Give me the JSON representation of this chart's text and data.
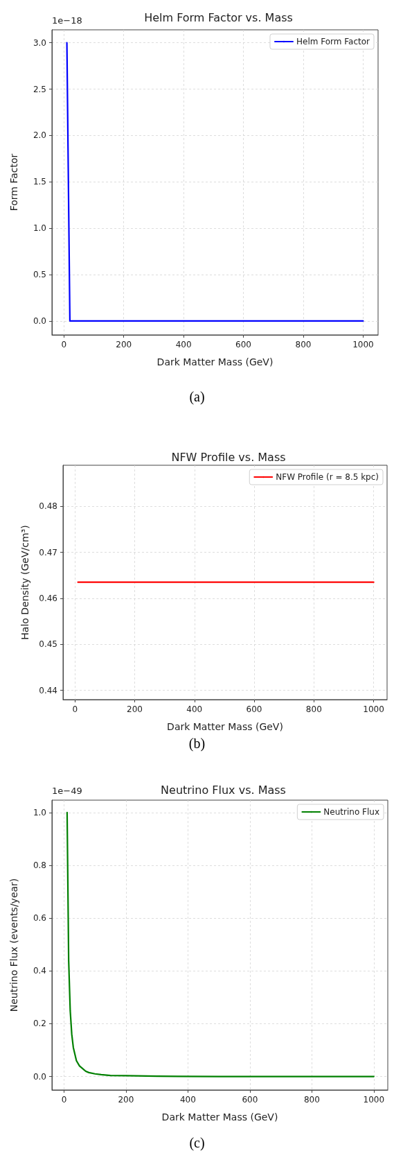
{
  "chart_data": [
    {
      "type": "line",
      "title": "Helm Form Factor vs. Mass",
      "xlabel": "Dark Matter Mass (GeV)",
      "ylabel": "Form Factor",
      "annotations": [
        "1e−18",
        "(a)"
      ],
      "x": [
        10,
        20,
        1000
      ],
      "series": [
        {
          "name": "Helm Form Factor",
          "color": "#0000ff",
          "values": [
            3,
            0,
            0
          ]
        }
      ],
      "xlim": [
        -40,
        1050
      ],
      "xticks": [
        0,
        200,
        400,
        600,
        800,
        1000
      ],
      "ylim": [
        -0.15,
        3.14
      ],
      "yticks": [
        {
          "value": 0,
          "label": "0.0"
        },
        0.5,
        {
          "value": 1,
          "label": "1.0"
        },
        1.5,
        {
          "value": 2,
          "label": "2.0"
        },
        2.5,
        {
          "value": 3,
          "label": "3.0"
        }
      ],
      "grid": true,
      "legend": "top right",
      "marker": "none",
      "line_style": "solid"
    },
    {
      "type": "line",
      "title": "NFW Profile vs. Mass",
      "xlabel": "Dark Matter Mass (GeV)",
      "ylabel": "Halo Density (GeV/cm³)",
      "annotations": [
        "(b)"
      ],
      "x": [
        10,
        1000
      ],
      "series": [
        {
          "name": "NFW Profile (r = 8.5 kpc)",
          "color": "#ff0000",
          "values": [
            0.4635,
            0.4635
          ]
        }
      ],
      "xlim": [
        -40,
        1045
      ],
      "xticks": [
        0,
        200,
        400,
        600,
        800,
        1000
      ],
      "ylim": [
        0.438,
        0.4889
      ],
      "yticks": [
        0.44,
        0.45,
        0.46,
        0.47,
        0.48
      ],
      "grid": true,
      "legend": "top right",
      "marker": "none",
      "line_style": "solid"
    },
    {
      "type": "line",
      "title": "Neutrino Flux vs. Mass",
      "xlabel": "Dark Matter Mass (GeV)",
      "ylabel": "Neutrino Flux (events/year)",
      "annotations": [
        "1e−49",
        "(c)"
      ],
      "x": [
        10,
        15,
        20,
        25,
        30,
        40,
        50,
        60,
        70,
        80,
        100,
        120,
        150,
        200,
        300,
        500,
        1000
      ],
      "series": [
        {
          "name": "Neutrino Flux",
          "color": "#008000",
          "values": [
            1.0,
            0.44,
            0.25,
            0.16,
            0.11,
            0.06,
            0.04,
            0.03,
            0.02,
            0.015,
            0.01,
            0.007,
            0.004,
            0.003,
            0.001,
            0,
            0
          ]
        }
      ],
      "xlim": [
        -39,
        1045
      ],
      "xticks": [
        0,
        200,
        400,
        600,
        800,
        1000
      ],
      "ylim": [
        -0.051,
        1.047
      ],
      "yticks": [
        {
          "value": 0,
          "label": "0.0"
        },
        0.2,
        0.4,
        0.6,
        0.8,
        {
          "value": 1,
          "label": "1.0"
        }
      ],
      "grid": true,
      "legend": "top right",
      "marker": "none",
      "line_style": "solid"
    }
  ]
}
